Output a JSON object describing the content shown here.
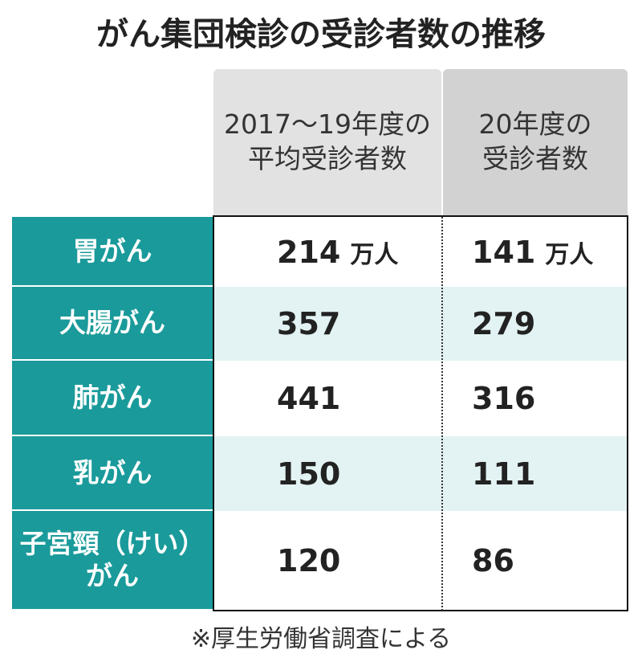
{
  "title": "がん集団検診の受診者数の推移",
  "table": {
    "headers": [
      [
        "2017～19年度の",
        "平均受診者数"
      ],
      [
        "20年度の",
        "受診者数"
      ]
    ],
    "rows": [
      {
        "label": [
          "胃がん"
        ],
        "values": [
          214,
          141
        ],
        "units": [
          "万人",
          "万人"
        ]
      },
      {
        "label": [
          "大腸がん"
        ],
        "values": [
          357,
          279
        ]
      },
      {
        "label": [
          "肺がん"
        ],
        "values": [
          441,
          316
        ]
      },
      {
        "label": [
          "乳がん"
        ],
        "values": [
          150,
          111
        ]
      },
      {
        "label": [
          "子宮頸（けい）",
          "がん"
        ],
        "values": [
          120,
          86
        ]
      }
    ]
  },
  "footnote": "※厚生労働省調査による"
}
